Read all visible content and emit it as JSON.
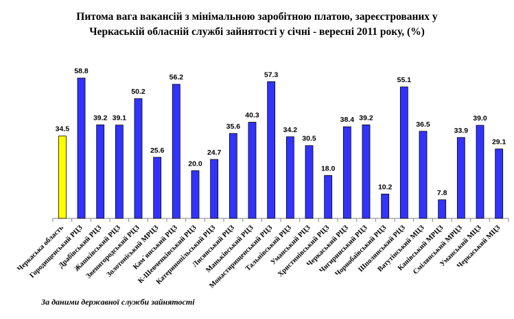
{
  "chart_data": {
    "type": "bar",
    "title_line1": "Питома вага вакансій з мінімальною заробітною платою, зареєстрованих у",
    "title_line2": "Черкаській обласній службі зайнятості у січні - вересні 2011 року, (%)",
    "xlabel": "",
    "ylabel": "",
    "ylim": [
      0,
      70
    ],
    "grid": false,
    "legend": "none",
    "categories": [
      "Черкаська область",
      "Городищенський РЦЗ",
      "Драбівський РЦЗ",
      "Жашківський РЦЗ",
      "Звенигородський РЦЗ",
      "Золотоніський МРЦЗ",
      "Кам`янський РЦЗ",
      "К-Шевченківський РЦЗ",
      "Катеринопільський РЦЗ",
      "Лисянський РЦЗ",
      "Маньківський РЦЗ",
      "Монастирищенський РЦЗ",
      "Тальнівський РЦЗ",
      "Уманський РЦЗ",
      "Христинівський РЦЗ",
      "Черкаський РЦЗ",
      "Чигиринський РЦЗ",
      "Чорнобаївський РЦЗ",
      "Шполянський РЦЗ",
      "Ватутінський МЦЗ",
      "Канівський МРЦЗ",
      "Смілянський МРЦЗ",
      "Уманський МЦЗ",
      "Черкаський МЦЗ"
    ],
    "values": [
      34.5,
      58.8,
      39.2,
      39.1,
      50.2,
      25.6,
      56.2,
      20.0,
      24.7,
      35.6,
      40.3,
      57.3,
      34.2,
      30.5,
      18.0,
      38.4,
      39.2,
      10.2,
      55.1,
      36.5,
      7.8,
      33.9,
      39.0,
      29.1
    ],
    "value_labels": [
      "34.5",
      "58.8",
      "39.2",
      "39.1",
      "50.2",
      "25.6",
      "56.2",
      "20.0",
      "24.7",
      "35.6",
      "40.3",
      "57.3",
      "34.2",
      "30.5",
      "18.0",
      "38.4",
      "39.2",
      "10.2",
      "55.1",
      "36.5",
      "7.8",
      "33.9",
      "39.0",
      "29.1"
    ],
    "highlight_index": 0,
    "colors": {
      "bar": "#3333ff",
      "highlight": "#ffff00",
      "outline": "#000000",
      "axis": "#808080"
    }
  },
  "source": "За даними державної служби зайнятості"
}
